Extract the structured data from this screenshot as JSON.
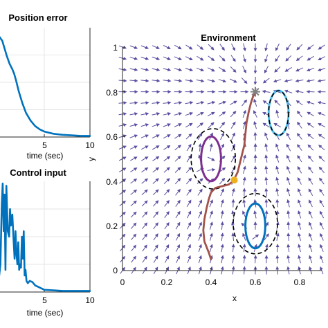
{
  "chart_data": [
    {
      "type": "line",
      "title": "Position error",
      "xlabel": "time (sec)",
      "ylabel": "",
      "xlim": [
        0,
        10
      ],
      "x_ticks": [
        "5",
        "10"
      ],
      "grid": true,
      "color": "#0072BD",
      "series": [
        {
          "x": [
            0.05,
            0.4,
            0.9,
            1.2,
            1.5,
            1.7,
            1.9,
            2.2,
            2.6,
            3.0,
            3.5,
            4.0,
            4.5,
            5.0,
            6.0,
            7.0,
            8.0,
            9.0,
            10.0
          ],
          "y": [
            0.92,
            0.88,
            0.74,
            0.67,
            0.62,
            0.58,
            0.52,
            0.42,
            0.31,
            0.22,
            0.15,
            0.1,
            0.07,
            0.05,
            0.03,
            0.02,
            0.015,
            0.01,
            0.01
          ]
        }
      ]
    },
    {
      "type": "line",
      "title": "Control input",
      "xlabel": "time (sec)",
      "ylabel": "",
      "xlim": [
        0,
        10
      ],
      "x_ticks": [
        "5",
        "10"
      ],
      "grid": true,
      "color": "#0072BD",
      "series": [
        {
          "x": [
            0.0,
            0.2,
            0.35,
            0.45,
            0.55,
            0.65,
            0.75,
            0.85,
            1.0,
            1.15,
            1.25,
            1.35,
            1.5,
            1.65,
            1.75,
            1.85,
            1.95,
            2.05,
            2.15,
            2.25,
            2.35,
            2.45,
            2.55,
            2.65,
            2.75,
            2.85,
            2.95,
            3.05,
            3.2,
            3.4,
            3.7,
            4.0,
            4.5,
            5.0,
            6.0,
            7.0,
            8.0,
            9.0,
            10.0
          ],
          "y": [
            0.1,
            0.25,
            0.8,
            0.98,
            0.55,
            0.88,
            0.2,
            0.96,
            0.55,
            0.5,
            0.75,
            0.6,
            0.7,
            0.45,
            0.3,
            0.55,
            0.35,
            0.25,
            0.45,
            0.2,
            0.25,
            0.22,
            0.5,
            0.3,
            0.55,
            0.15,
            0.2,
            0.1,
            0.08,
            0.1,
            0.09,
            0.06,
            0.04,
            0.02,
            0.015,
            0.01,
            0.01,
            0.01,
            0.01
          ]
        }
      ]
    },
    {
      "type": "line",
      "title": "Environment",
      "xlabel": "x",
      "ylabel": "y",
      "xlim": [
        0,
        0.9
      ],
      "ylim": [
        0,
        1
      ],
      "x_ticks": [
        "0",
        "0.2",
        "0.4",
        "0.6",
        "0.8"
      ],
      "y_ticks": [
        "0",
        "0.2",
        "0.4",
        "0.6",
        "0.8",
        "1"
      ],
      "grid": false,
      "vector_field": {
        "color": "#5a4fa0",
        "x_step": 0.05,
        "y_step": 0.05,
        "goal": [
          0.6,
          0.8
        ],
        "avoid_centers": [
          [
            0.4,
            0.5
          ],
          [
            0.6,
            0.2
          ],
          [
            0.7,
            0.7
          ]
        ]
      },
      "obstacles": [
        {
          "shape": "ellipse",
          "center": [
            0.4,
            0.5
          ],
          "radius": [
            0.045,
            0.1
          ],
          "color": "#7E2F8E",
          "style": "solid"
        },
        {
          "shape": "ellipse",
          "center": [
            0.41,
            0.5
          ],
          "radius": [
            0.1,
            0.135
          ],
          "color": "#000000",
          "style": "dashed"
        },
        {
          "shape": "ellipse",
          "center": [
            0.6,
            0.2
          ],
          "radius": [
            0.045,
            0.1
          ],
          "color": "#0072BD",
          "style": "solid"
        },
        {
          "shape": "ellipse",
          "center": [
            0.6,
            0.21
          ],
          "radius": [
            0.1,
            0.135
          ],
          "color": "#000000",
          "style": "dashed"
        },
        {
          "shape": "ellipse",
          "center": [
            0.705,
            0.705
          ],
          "radius": [
            0.045,
            0.1
          ],
          "color": "#4DBEEE",
          "style": "solid"
        },
        {
          "shape": "ellipse",
          "center": [
            0.705,
            0.705
          ],
          "radius": [
            0.045,
            0.1
          ],
          "color": "#000000",
          "style": "dashed"
        }
      ],
      "trajectory": {
        "color": "#A2524B",
        "x": [
          0.4,
          0.39,
          0.37,
          0.365,
          0.37,
          0.38,
          0.39,
          0.4,
          0.42,
          0.44,
          0.46,
          0.48,
          0.5,
          0.52,
          0.53,
          0.54,
          0.55,
          0.555,
          0.56,
          0.57,
          0.58,
          0.59,
          0.6
        ],
        "y": [
          0.05,
          0.08,
          0.13,
          0.18,
          0.23,
          0.28,
          0.32,
          0.35,
          0.37,
          0.375,
          0.38,
          0.385,
          0.4,
          0.44,
          0.48,
          0.52,
          0.56,
          0.61,
          0.66,
          0.71,
          0.75,
          0.78,
          0.8
        ]
      },
      "start_marker": {
        "x": 0.6,
        "y": 0.8,
        "color": "#7f7f7f",
        "symbol": "asterisk"
      },
      "point_marker": {
        "x": 0.505,
        "y": 0.405,
        "color": "#EDB120",
        "symbol": "dot"
      }
    }
  ]
}
